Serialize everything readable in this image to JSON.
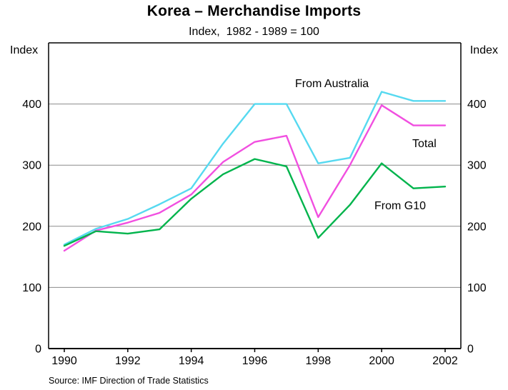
{
  "page": {
    "title": "Korea – Merchandise Imports",
    "subtitle": "Index,  1982 - 1989 = 100",
    "axis_unit_left": "Index",
    "axis_unit_right": "Index",
    "source": "Source: IMF Direction of Trade Statistics"
  },
  "chart_data": {
    "type": "line",
    "title": "Korea – Merchandise Imports",
    "subtitle": "Index, 1982 - 1989 = 100",
    "x": [
      1990,
      1991,
      1992,
      1993,
      1994,
      1995,
      1996,
      1997,
      1998,
      1999,
      2000,
      2001,
      2002
    ],
    "x_tick_labels": [
      "1990",
      "1992",
      "1994",
      "1996",
      "1998",
      "2000",
      "2002"
    ],
    "y_ticks": [
      0,
      100,
      200,
      300,
      400
    ],
    "ylim": [
      0,
      500
    ],
    "grid": true,
    "legend": "inline-labels",
    "ylabel_left": "Index",
    "ylabel_right": "Index",
    "series": [
      {
        "name": "From Australia",
        "color": "#56D9F0",
        "values": [
          170,
          196,
          212,
          236,
          262,
          335,
          400,
          400,
          303,
          312,
          420,
          405,
          405
        ]
      },
      {
        "name": "Total",
        "color": "#F14FE0",
        "values": [
          160,
          193,
          206,
          222,
          252,
          305,
          338,
          348,
          215,
          300,
          398,
          365,
          365
        ]
      },
      {
        "name": "From G10",
        "color": "#00B44C",
        "values": [
          168,
          192,
          188,
          195,
          245,
          285,
          310,
          298,
          181,
          235,
          303,
          262,
          265
        ]
      }
    ]
  }
}
